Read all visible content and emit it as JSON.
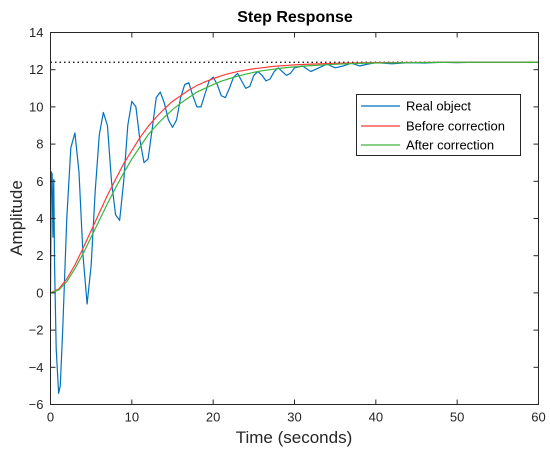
{
  "chart_data": {
    "type": "line",
    "title": "Step Response",
    "xlabel": "Time (seconds)",
    "ylabel": "Amplitude",
    "xlim": [
      0,
      60
    ],
    "ylim": [
      -6,
      14
    ],
    "xticks": [
      0,
      10,
      20,
      30,
      40,
      50,
      60
    ],
    "yticks": [
      -6,
      -4,
      -2,
      0,
      2,
      4,
      6,
      8,
      10,
      12,
      14
    ],
    "grid": false,
    "legend_position": "top-right",
    "reference_line": {
      "y": 12.4,
      "style": "dotted",
      "color": "#000000"
    },
    "series": [
      {
        "name": "Real object",
        "color": "#0072BD",
        "x": [
          0,
          0.1,
          0.2,
          0.3,
          0.4,
          0.5,
          0.7,
          1.0,
          1.2,
          1.5,
          2.0,
          2.5,
          3.0,
          3.5,
          4.0,
          4.5,
          5.0,
          5.5,
          6.0,
          6.5,
          7.0,
          7.5,
          8.0,
          8.5,
          9.0,
          9.5,
          10.0,
          10.5,
          11.0,
          11.5,
          12.0,
          12.5,
          13.0,
          13.5,
          14.0,
          14.5,
          15.0,
          15.5,
          16.0,
          16.5,
          17.0,
          17.5,
          18.0,
          18.5,
          19.0,
          19.5,
          20.0,
          20.5,
          21.0,
          21.5,
          22.0,
          22.5,
          23.0,
          23.5,
          24.0,
          24.5,
          25.0,
          25.5,
          26.0,
          26.5,
          27.0,
          27.5,
          28.0,
          28.5,
          29.0,
          29.5,
          30.0,
          31.0,
          32.0,
          33.0,
          34.0,
          35.0,
          36.0,
          37.0,
          38.0,
          39.0,
          40.0,
          42.0,
          44.0,
          46.0,
          48.0,
          50.0,
          52.0,
          55.0,
          58.0,
          60.0
        ],
        "y": [
          0,
          6.5,
          6.4,
          3.0,
          6.1,
          1.5,
          -3.0,
          -5.4,
          -5.0,
          -2.0,
          4.0,
          7.8,
          8.6,
          6.5,
          2.0,
          -0.6,
          1.5,
          5.5,
          8.5,
          9.7,
          9.0,
          6.0,
          4.2,
          3.9,
          6.0,
          9.0,
          10.3,
          10.0,
          8.2,
          7.0,
          7.2,
          8.8,
          10.5,
          10.8,
          10.2,
          9.3,
          8.9,
          9.3,
          10.5,
          11.2,
          11.3,
          10.6,
          10.0,
          10.0,
          10.7,
          11.4,
          11.6,
          11.2,
          10.6,
          10.5,
          11.0,
          11.6,
          11.8,
          11.4,
          11.0,
          11.1,
          11.7,
          11.9,
          11.7,
          11.4,
          11.5,
          11.9,
          12.1,
          11.9,
          11.7,
          11.8,
          12.1,
          12.2,
          11.9,
          12.1,
          12.3,
          12.1,
          12.2,
          12.35,
          12.2,
          12.3,
          12.38,
          12.32,
          12.38,
          12.36,
          12.4,
          12.38,
          12.4,
          12.4,
          12.4,
          12.4
        ]
      },
      {
        "name": "Before correction",
        "color": "#FF3B3B",
        "x": [
          0,
          1,
          2,
          3,
          4,
          5,
          6,
          7,
          8,
          9,
          10,
          11,
          12,
          13,
          14,
          15,
          16,
          17,
          18,
          19,
          20,
          21,
          22,
          23,
          24,
          25,
          26,
          27,
          28,
          29,
          30,
          32,
          34,
          36,
          38,
          40,
          45,
          50,
          55,
          60
        ],
        "y": [
          0,
          0.2,
          0.75,
          1.5,
          2.4,
          3.35,
          4.3,
          5.25,
          6.1,
          6.95,
          7.65,
          8.35,
          8.95,
          9.45,
          9.9,
          10.3,
          10.6,
          10.9,
          11.15,
          11.35,
          11.52,
          11.67,
          11.8,
          11.9,
          11.98,
          12.05,
          12.1,
          12.16,
          12.2,
          12.23,
          12.26,
          12.3,
          12.33,
          12.35,
          12.37,
          12.38,
          12.39,
          12.4,
          12.4,
          12.4
        ]
      },
      {
        "name": "After correction",
        "color": "#3CB43C",
        "x": [
          0,
          1,
          2,
          3,
          4,
          5,
          6,
          7,
          8,
          9,
          10,
          11,
          12,
          13,
          14,
          15,
          16,
          17,
          18,
          19,
          20,
          21,
          22,
          23,
          24,
          25,
          26,
          27,
          28,
          29,
          30,
          32,
          34,
          36,
          38,
          40,
          45,
          50,
          55,
          60
        ],
        "y": [
          0,
          0.15,
          0.6,
          1.3,
          2.1,
          3.0,
          3.9,
          4.8,
          5.65,
          6.45,
          7.2,
          7.85,
          8.5,
          9.0,
          9.45,
          9.85,
          10.2,
          10.5,
          10.8,
          11.0,
          11.2,
          11.38,
          11.52,
          11.65,
          11.76,
          11.86,
          11.94,
          12.0,
          12.06,
          12.11,
          12.15,
          12.22,
          12.27,
          12.31,
          12.34,
          12.36,
          12.38,
          12.4,
          12.4,
          12.4
        ]
      }
    ]
  }
}
